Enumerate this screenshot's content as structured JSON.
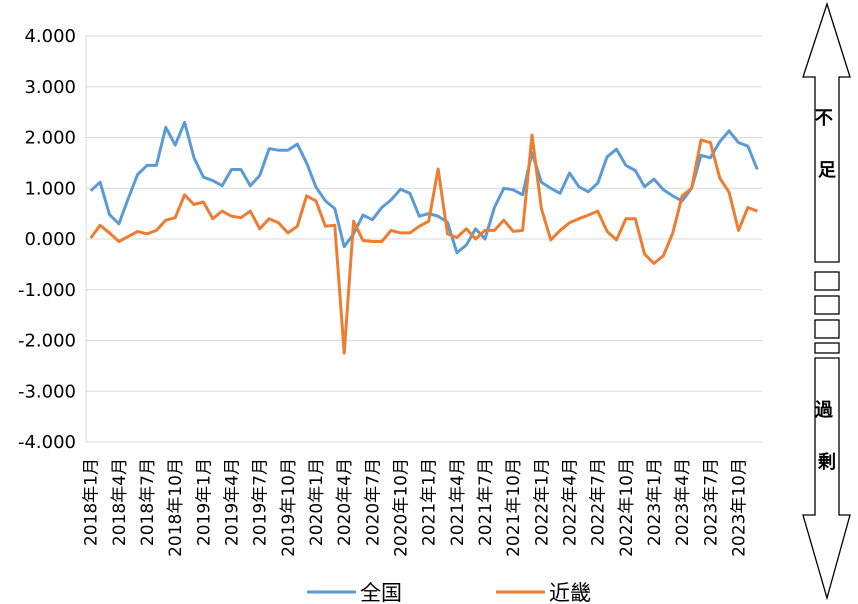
{
  "chart_data": {
    "type": "line",
    "ylim": [
      -4,
      4
    ],
    "y_ticks": [
      "4.000",
      "3.000",
      "2.000",
      "1.000",
      "0.000",
      "-1.000",
      "-2.000",
      "-3.000",
      "-4.000"
    ],
    "x_ticks": [
      "2018年1月",
      "2018年4月",
      "2018年7月",
      "2018年10月",
      "2019年1月",
      "2019年4月",
      "2019年7月",
      "2019年10月",
      "2020年1月",
      "2020年4月",
      "2020年7月",
      "2020年10月",
      "2021年1月",
      "2021年4月",
      "2021年7月",
      "2021年10月",
      "2022年1月",
      "2022年4月",
      "2022年7月",
      "2022年10月",
      "2023年1月",
      "2023年4月",
      "2023年7月",
      "2023年10月"
    ],
    "grid": true,
    "legend_position": "bottom",
    "series": [
      {
        "name": "全国",
        "color": "#5B9BD5",
        "values": [
          0.95,
          1.12,
          0.48,
          0.3,
          0.8,
          1.27,
          1.45,
          1.45,
          2.2,
          1.85,
          2.3,
          1.6,
          1.22,
          1.15,
          1.05,
          1.37,
          1.37,
          1.05,
          1.25,
          1.78,
          1.75,
          1.75,
          1.87,
          1.5,
          1.02,
          0.75,
          0.6,
          -0.15,
          0.1,
          0.47,
          0.38,
          0.62,
          0.77,
          0.98,
          0.9,
          0.45,
          0.5,
          0.45,
          0.33,
          -0.27,
          -0.12,
          0.2,
          0.0,
          0.62,
          1.0,
          0.97,
          0.87,
          1.7,
          1.12,
          1.0,
          0.9,
          1.3,
          1.03,
          0.93,
          1.1,
          1.62,
          1.77,
          1.45,
          1.35,
          1.03,
          1.18,
          0.97,
          0.85,
          0.75,
          1.0,
          1.65,
          1.6,
          1.92,
          2.13,
          1.9,
          1.83,
          1.37
        ]
      },
      {
        "name": "近畿",
        "color": "#ED7D31",
        "values": [
          0.02,
          0.27,
          0.12,
          -0.05,
          0.05,
          0.15,
          0.1,
          0.17,
          0.37,
          0.42,
          0.87,
          0.68,
          0.73,
          0.4,
          0.55,
          0.45,
          0.42,
          0.55,
          0.2,
          0.4,
          0.32,
          0.12,
          0.25,
          0.85,
          0.75,
          0.25,
          0.27,
          -2.25,
          0.35,
          -0.03,
          -0.05,
          -0.05,
          0.17,
          0.12,
          0.12,
          0.25,
          0.35,
          1.38,
          0.1,
          0.03,
          0.2,
          0.0,
          0.17,
          0.17,
          0.37,
          0.15,
          0.17,
          2.05,
          0.6,
          -0.02,
          0.17,
          0.32,
          0.4,
          0.47,
          0.55,
          0.15,
          -0.02,
          0.4,
          0.4,
          -0.3,
          -0.48,
          -0.33,
          0.12,
          0.85,
          1.0,
          1.95,
          1.9,
          1.2,
          0.92,
          0.17,
          0.62,
          0.55
        ]
      }
    ]
  },
  "side_indicator": {
    "top_label": "不足",
    "bottom_label": "過剰"
  }
}
